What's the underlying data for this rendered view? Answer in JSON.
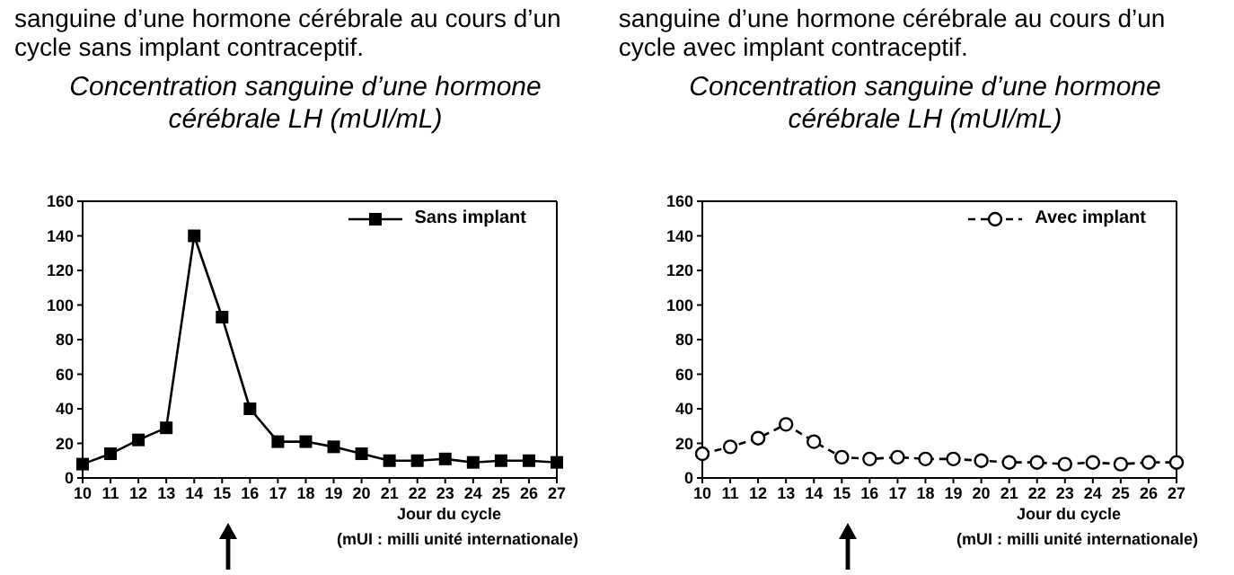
{
  "chart_data": [
    {
      "type": "line",
      "title": "Concentration sanguine d’une hormone cérébrale LH (mUI/mL)",
      "xlabel": "Jour du cycle",
      "annotations": [
        "sanguine d’une hormone cérébrale au cours d’un cycle sans implant contraceptif.",
        "(mUI : milli unité internationale)"
      ],
      "categories": [
        "10",
        "11",
        "12",
        "13",
        "14",
        "15",
        "16",
        "17",
        "18",
        "19",
        "20",
        "21",
        "22",
        "23",
        "24",
        "25",
        "26",
        "27"
      ],
      "series": [
        {
          "name": "Sans implant",
          "color": "#000000",
          "marker": "square",
          "line_style": "solid",
          "values": [
            8,
            14,
            22,
            29,
            140,
            93,
            40,
            21,
            21,
            18,
            14,
            10,
            10,
            11,
            9,
            10,
            10,
            9
          ]
        }
      ],
      "ylim": [
        0,
        160
      ],
      "yticks": [
        0,
        20,
        40,
        60,
        80,
        100,
        120,
        140,
        160
      ],
      "grid": false,
      "legend": "top right"
    },
    {
      "type": "line",
      "title": "Concentration sanguine d’une hormone cérébrale LH (mUI/mL)",
      "xlabel": "Jour du cycle",
      "annotations": [
        "sanguine d’une hormone cérébrale au cours d’un cycle avec implant contraceptif.",
        "(mUI : milli unité internationale)"
      ],
      "categories": [
        "10",
        "11",
        "12",
        "13",
        "14",
        "15",
        "16",
        "17",
        "18",
        "19",
        "20",
        "21",
        "22",
        "23",
        "24",
        "25",
        "26",
        "27"
      ],
      "series": [
        {
          "name": "Avec implant",
          "color": "#000000",
          "marker": "circle",
          "line_style": "dashed",
          "values": [
            14,
            18,
            23,
            31,
            21,
            12,
            11,
            12,
            11,
            11,
            10,
            9,
            9,
            8,
            9,
            8,
            9,
            9
          ]
        }
      ],
      "ylim": [
        0,
        160
      ],
      "yticks": [
        0,
        20,
        40,
        60,
        80,
        100,
        120,
        140,
        160
      ],
      "grid": false,
      "legend": "top right"
    }
  ]
}
